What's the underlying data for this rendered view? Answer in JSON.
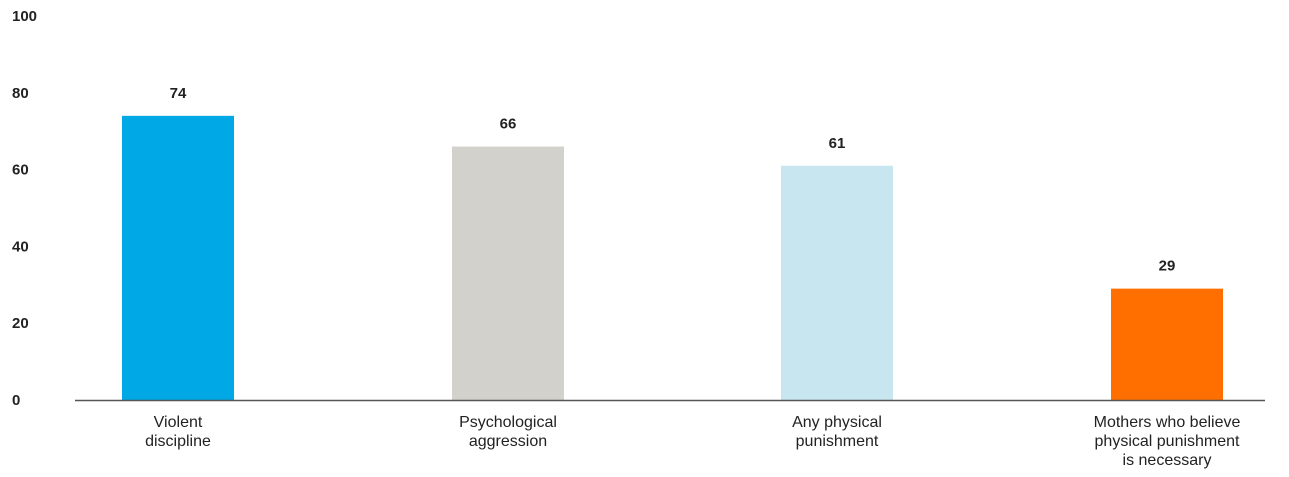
{
  "chart_data": {
    "type": "bar",
    "categories": [
      [
        "Violent",
        "discipline"
      ],
      [
        "Psychological",
        "aggression"
      ],
      [
        "Any physical",
        "punishment"
      ],
      [
        "Mothers who believe",
        "physical punishment",
        "is necessary"
      ]
    ],
    "values": [
      74,
      66,
      61,
      29
    ],
    "value_labels": [
      "74",
      "66",
      "61",
      "29"
    ],
    "colors": [
      "#00a9e6",
      "#d3d1cb",
      "#c8e6f0",
      "#ff6f00"
    ],
    "ylim": [
      0,
      100
    ],
    "yticks": [
      0,
      20,
      40,
      60,
      80,
      100
    ],
    "grid": false,
    "legend": "none"
  }
}
